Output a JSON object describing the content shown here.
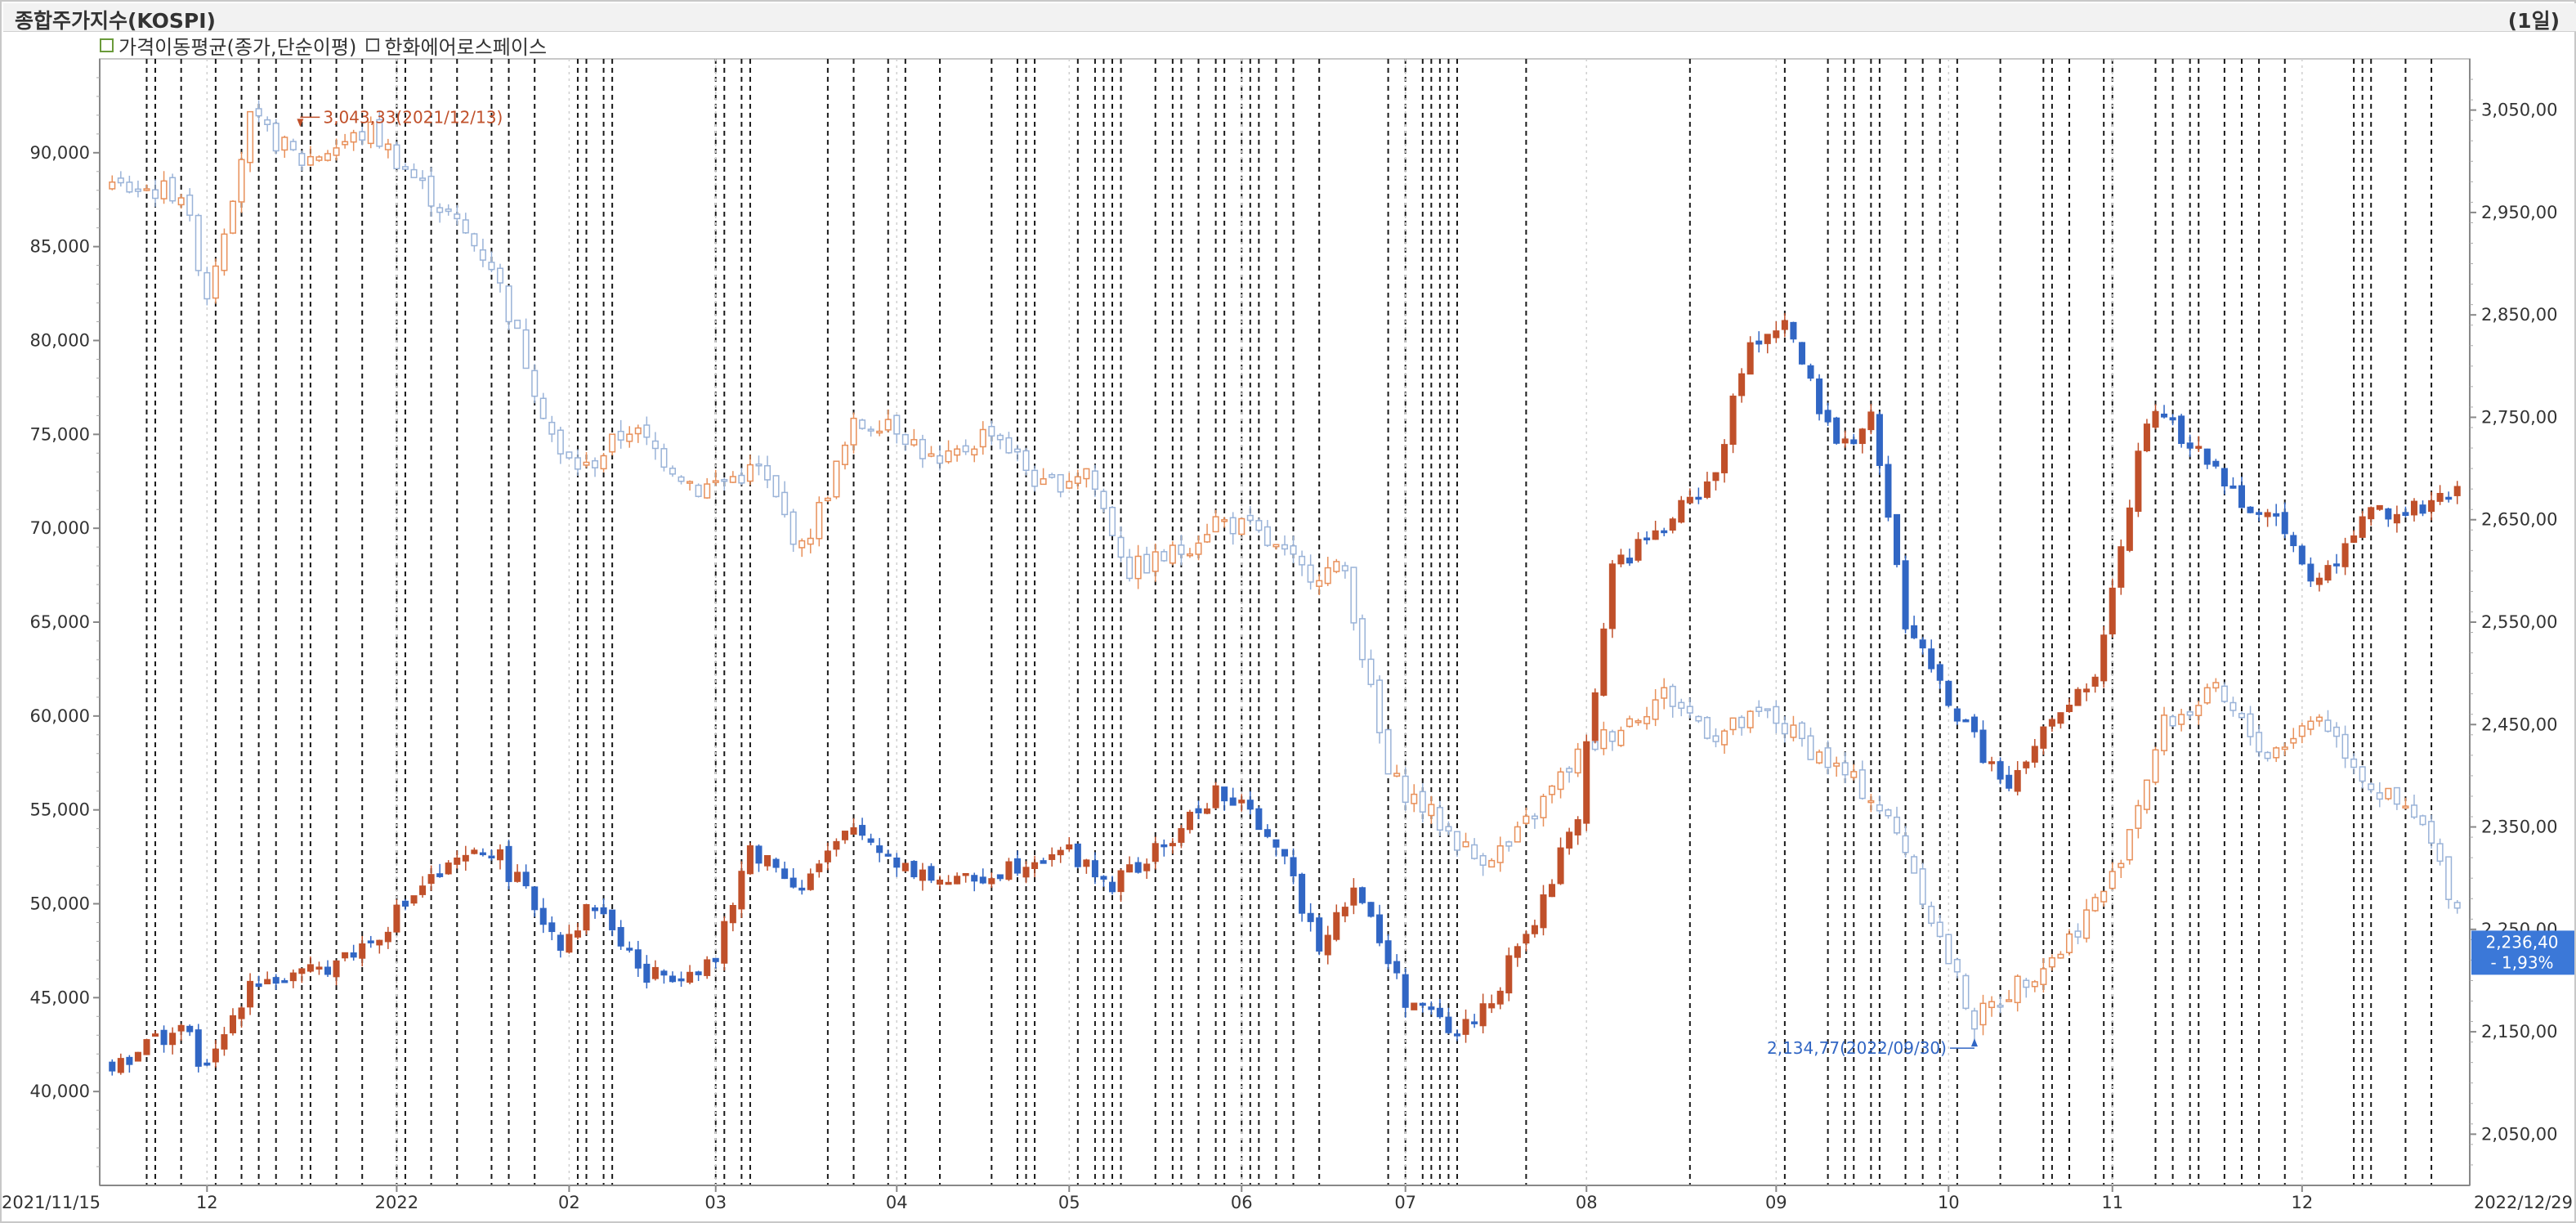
{
  "header": {
    "title": "종합주가지수(KOSPI)",
    "period": "(1일)",
    "legend_ma": "가격이동평균(종가,단순이평)",
    "legend_stock": "한화에어로스페이스"
  },
  "chart_data": {
    "type": "candlestick",
    "left_axis": {
      "min": 35000,
      "max": 95000,
      "ticks": [
        40000,
        45000,
        50000,
        55000,
        60000,
        65000,
        70000,
        75000,
        80000,
        85000,
        90000
      ],
      "tick_labels": [
        "40,000",
        "45,000",
        "50,000",
        "55,000",
        "60,000",
        "65,000",
        "70,000",
        "75,000",
        "80,000",
        "85,000",
        "90,000"
      ]
    },
    "right_axis": {
      "min": 2000,
      "max": 3100,
      "ticks": [
        2050,
        2150,
        2250,
        2350,
        2450,
        2550,
        2650,
        2750,
        2850,
        2950,
        3050
      ],
      "tick_labels": [
        "2,050,00",
        "2,150,00",
        "2,250,00",
        "2,350,00",
        "2,450,00",
        "2,550,00",
        "2,650,00",
        "2,750,00",
        "2,850,00",
        "2,950,00",
        "3,050,00"
      ]
    },
    "x_axis": {
      "start_label": "2021/11/15",
      "end_label": "2022/12/29",
      "labels": [
        {
          "label": "12",
          "index": 11
        },
        {
          "label": "2022",
          "index": 33
        },
        {
          "label": "02",
          "index": 53
        },
        {
          "label": "03",
          "index": 70
        },
        {
          "label": "04",
          "index": 91
        },
        {
          "label": "05",
          "index": 111
        },
        {
          "label": "06",
          "index": 131
        },
        {
          "label": "07",
          "index": 150
        },
        {
          "label": "08",
          "index": 171
        },
        {
          "label": "09",
          "index": 193
        },
        {
          "label": "10",
          "index": 213
        },
        {
          "label": "11",
          "index": 232
        },
        {
          "label": "12",
          "index": 254
        }
      ]
    },
    "total_sessions": 273,
    "kospi_annotation_high": "3,043,33(2021/12/13)",
    "kospi_annotation_low": "2,134,77(2022/09/30)",
    "last_value_label": "2,236,40",
    "last_change_label": "- 1,93%",
    "colors": {
      "up": "#c0502a",
      "down": "#3166c4",
      "kospi_up": "#e8905a",
      "kospi_down": "#9ab3d8"
    },
    "kospi_path": [
      [
        0,
        2975
      ],
      [
        8,
        2970
      ],
      [
        11,
        2870
      ],
      [
        16,
        3040
      ],
      [
        22,
        3000
      ],
      [
        30,
        3030
      ],
      [
        36,
        2975
      ],
      [
        44,
        2900
      ],
      [
        52,
        2710
      ],
      [
        55,
        2700
      ],
      [
        60,
        2740
      ],
      [
        68,
        2680
      ],
      [
        75,
        2700
      ],
      [
        80,
        2620
      ],
      [
        86,
        2740
      ],
      [
        90,
        2750
      ],
      [
        96,
        2700
      ],
      [
        102,
        2740
      ],
      [
        108,
        2680
      ],
      [
        113,
        2700
      ],
      [
        118,
        2600
      ],
      [
        124,
        2620
      ],
      [
        128,
        2650
      ],
      [
        132,
        2640
      ],
      [
        138,
        2600
      ],
      [
        143,
        2600
      ],
      [
        148,
        2400
      ],
      [
        152,
        2370
      ],
      [
        158,
        2320
      ],
      [
        162,
        2330
      ],
      [
        170,
        2420
      ],
      [
        176,
        2455
      ],
      [
        180,
        2480
      ],
      [
        186,
        2440
      ],
      [
        192,
        2460
      ],
      [
        198,
        2420
      ],
      [
        204,
        2380
      ],
      [
        208,
        2330
      ],
      [
        212,
        2240
      ],
      [
        216,
        2160
      ],
      [
        220,
        2190
      ],
      [
        226,
        2230
      ],
      [
        232,
        2300
      ],
      [
        238,
        2450
      ],
      [
        244,
        2480
      ],
      [
        250,
        2420
      ],
      [
        256,
        2460
      ],
      [
        262,
        2390
      ],
      [
        268,
        2350
      ],
      [
        273,
        2250
      ]
    ],
    "stock_path": [
      [
        0,
        41500
      ],
      [
        8,
        43500
      ],
      [
        11,
        41000
      ],
      [
        16,
        46000
      ],
      [
        22,
        46000
      ],
      [
        30,
        48000
      ],
      [
        36,
        51000
      ],
      [
        44,
        53000
      ],
      [
        52,
        48000
      ],
      [
        56,
        50000
      ],
      [
        62,
        46000
      ],
      [
        70,
        47000
      ],
      [
        74,
        53000
      ],
      [
        80,
        51000
      ],
      [
        86,
        54000
      ],
      [
        92,
        52000
      ],
      [
        98,
        51000
      ],
      [
        104,
        52000
      ],
      [
        110,
        53000
      ],
      [
        116,
        51000
      ],
      [
        122,
        53000
      ],
      [
        128,
        56000
      ],
      [
        134,
        54000
      ],
      [
        140,
        48000
      ],
      [
        144,
        51000
      ],
      [
        150,
        45000
      ],
      [
        156,
        43000
      ],
      [
        160,
        45000
      ],
      [
        166,
        50000
      ],
      [
        170,
        55000
      ],
      [
        174,
        68000
      ],
      [
        180,
        70000
      ],
      [
        186,
        73000
      ],
      [
        190,
        80000
      ],
      [
        194,
        81000
      ],
      [
        200,
        74000
      ],
      [
        204,
        76000
      ],
      [
        208,
        65000
      ],
      [
        214,
        60000
      ],
      [
        220,
        56000
      ],
      [
        224,
        59000
      ],
      [
        230,
        62000
      ],
      [
        236,
        76000
      ],
      [
        240,
        75000
      ],
      [
        246,
        72000
      ],
      [
        252,
        70000
      ],
      [
        256,
        67000
      ],
      [
        262,
        71000
      ],
      [
        268,
        71000
      ],
      [
        273,
        72000
      ]
    ]
  }
}
